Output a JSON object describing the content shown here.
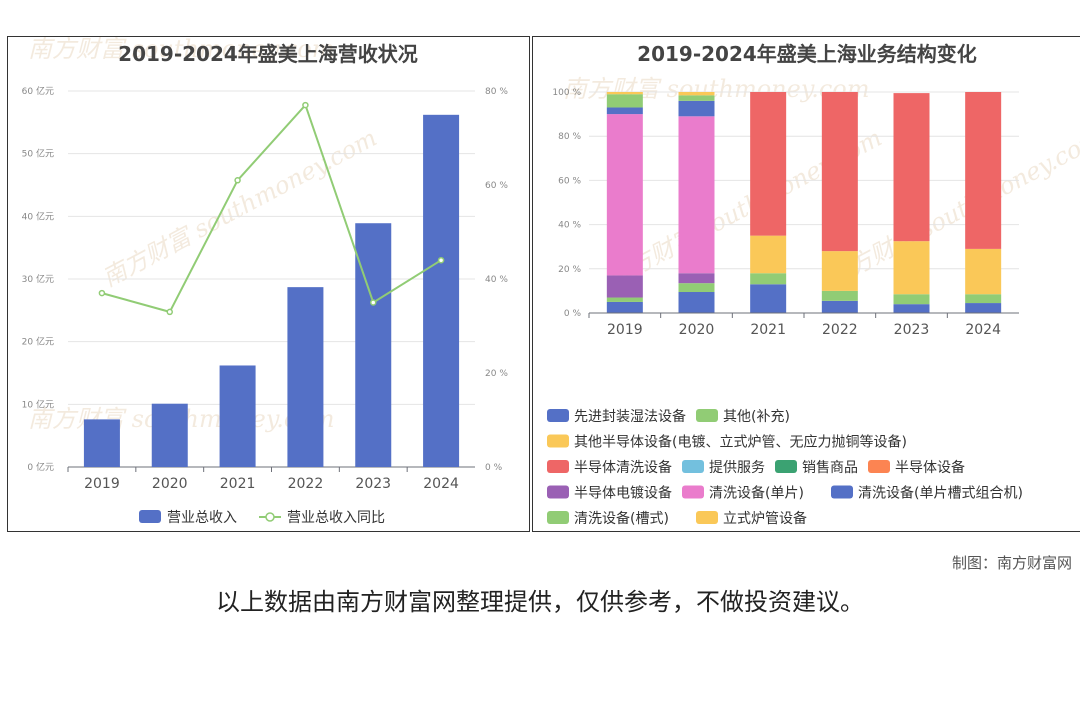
{
  "chart_data": [
    {
      "type": "bar+line",
      "title": "2019-2024年盛美上海营收状况",
      "categories": [
        "2019",
        "2020",
        "2021",
        "2022",
        "2023",
        "2024"
      ],
      "series": [
        {
          "name": "营业总收入",
          "type": "bar",
          "axis": "left",
          "unit": "亿元",
          "color": "#5470c6",
          "values": [
            7.6,
            10.1,
            16.2,
            28.7,
            38.9,
            56.2
          ]
        },
        {
          "name": "营业总收入同比",
          "type": "line",
          "axis": "right",
          "unit": "%",
          "color": "#91cc75",
          "values": [
            37,
            33,
            61,
            77,
            35,
            44
          ]
        }
      ],
      "y_left": {
        "ticks": [
          "0 亿元",
          "10 亿元",
          "20 亿元",
          "30 亿元",
          "40 亿元",
          "50 亿元",
          "60 亿元"
        ],
        "range": [
          0,
          60
        ]
      },
      "y_right": {
        "ticks": [
          "0 %",
          "20 %",
          "40 %",
          "60 %",
          "80 %"
        ],
        "range": [
          0,
          80
        ]
      },
      "legend": "bottom",
      "grid": true
    },
    {
      "type": "stacked-bar-percent",
      "title": "2019-2024年盛美上海业务结构变化",
      "categories": [
        "2019",
        "2020",
        "2021",
        "2022",
        "2023",
        "2024"
      ],
      "y": {
        "ticks": [
          "0 %",
          "20 %",
          "40 %",
          "60 %",
          "80 %",
          "100 %"
        ],
        "range": [
          0,
          100
        ]
      },
      "series": [
        {
          "name": "先进封装湿法设备",
          "color": "#5470c6",
          "values": [
            5,
            9.5,
            13,
            5.5,
            4,
            4.5
          ]
        },
        {
          "name": "清洗设备(槽式)",
          "color": "#91cc75",
          "values": [
            2,
            4,
            5,
            4.5,
            4.5,
            4
          ]
        },
        {
          "name": "其他半导体设备(电镀、立式炉管、无应力抛铜等设备)",
          "color": "#fac858",
          "values": [
            0,
            0,
            17,
            18,
            24,
            20.5
          ]
        },
        {
          "name": "半导体清洗设备",
          "color": "#ee6666",
          "values": [
            0,
            0,
            65,
            72,
            67,
            71
          ]
        },
        {
          "name": "半导体电镀设备",
          "color": "#9a60b4",
          "values": [
            10,
            4.5,
            0,
            0,
            0,
            0
          ]
        },
        {
          "name": "清洗设备(单片)",
          "color": "#ea7ccc",
          "values": [
            73,
            71,
            0,
            0,
            0,
            0
          ]
        },
        {
          "name": "清洗设备(单片槽式组合机)",
          "color": "#5470c6",
          "values": [
            3,
            7,
            0,
            0,
            0,
            0
          ]
        },
        {
          "name": "其他(补充)",
          "color": "#91cc75",
          "values": [
            6,
            2.5,
            0,
            0,
            0,
            0
          ]
        },
        {
          "name": "立式炉管设备",
          "color": "#fac858",
          "values": [
            1,
            1.5,
            0,
            0,
            0,
            0
          ]
        }
      ],
      "legend_entries": [
        {
          "name": "先进封装湿法设备",
          "color": "#5470c6"
        },
        {
          "name": "其他(补充)",
          "color": "#91cc75"
        },
        {
          "name": "其他半导体设备(电镀、立式炉管、无应力抛铜等设备)",
          "color": "#fac858"
        },
        {
          "name": "半导体清洗设备",
          "color": "#ee6666"
        },
        {
          "name": "提供服务",
          "color": "#73c0de"
        },
        {
          "name": "销售商品",
          "color": "#3ba272"
        },
        {
          "name": "半导体设备",
          "color": "#fc8452"
        },
        {
          "name": "半导体电镀设备",
          "color": "#9a60b4"
        },
        {
          "name": "清洗设备(单片)",
          "color": "#ea7ccc"
        },
        {
          "name": "清洗设备(单片槽式组合机)",
          "color": "#5470c6"
        },
        {
          "name": "清洗设备(槽式)",
          "color": "#91cc75"
        },
        {
          "name": "立式炉管设备",
          "color": "#fac858"
        }
      ],
      "legend": "bottom",
      "grid": true
    }
  ],
  "watermark": "南方财富 southmoney.com",
  "credit": "制图：南方财富网",
  "disclaimer": "以上数据由南方财富网整理提供，仅供参考，不做投资建议。"
}
